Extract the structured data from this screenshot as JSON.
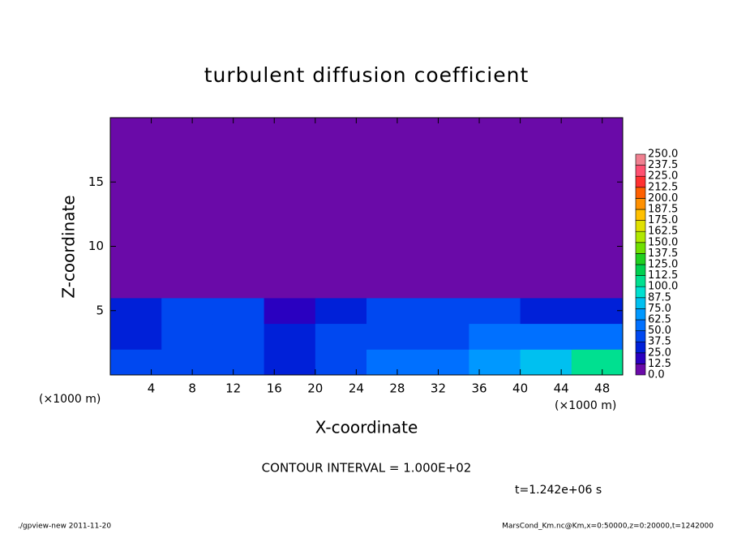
{
  "chart_data": {
    "type": "heatmap",
    "title": "turbulent diffusion coefficient",
    "x_label": "X-coordinate",
    "y_label": "Z-coordinate",
    "x_unit": "(×1000 m)",
    "y_unit": "(×1000 m)",
    "contour_note": "CONTOUR INTERVAL = 1.000E+02",
    "time_note": "t=1.242e+06 s",
    "footer_left": "./gpview-new  2011-11-20",
    "footer_right": "MarsCond_Km.nc@Km,x=0:50000,z=0:20000,t=1242000",
    "xlim": [
      0,
      50
    ],
    "ylim": [
      0,
      20
    ],
    "xticks": [
      4,
      8,
      12,
      16,
      20,
      24,
      28,
      32,
      36,
      40,
      44,
      48
    ],
    "yticks": [
      5,
      10,
      15
    ],
    "xbins": [
      0,
      5,
      10,
      15,
      20,
      25,
      30,
      35,
      40,
      45,
      50
    ],
    "ybins": [
      0,
      2,
      4,
      6,
      20
    ],
    "z": [
      [
        40,
        45,
        40,
        35,
        45,
        50,
        60,
        70,
        80,
        100
      ],
      [
        35,
        45,
        40,
        30,
        45,
        45,
        40,
        55,
        50,
        60
      ],
      [
        25,
        40,
        40,
        20,
        35,
        40,
        45,
        40,
        35,
        30
      ],
      [
        5,
        5,
        5,
        5,
        5,
        5,
        5,
        5,
        5,
        5
      ]
    ],
    "levels": [
      {
        "value": 0,
        "label": "0.0"
      },
      {
        "value": 12.5,
        "label": "12.5"
      },
      {
        "value": 25,
        "label": "25.0"
      },
      {
        "value": 37.5,
        "label": "37.5"
      },
      {
        "value": 50,
        "label": "50.0"
      },
      {
        "value": 62.5,
        "label": "62.5"
      },
      {
        "value": 75,
        "label": "75.0"
      },
      {
        "value": 87.5,
        "label": "87.5"
      },
      {
        "value": 100,
        "label": "100.0"
      },
      {
        "value": 112.5,
        "label": "112.5"
      },
      {
        "value": 125,
        "label": "125.0"
      },
      {
        "value": 137.5,
        "label": "137.5"
      },
      {
        "value": 150,
        "label": "150.0"
      },
      {
        "value": 162.5,
        "label": "162.5"
      },
      {
        "value": 175,
        "label": "175.0"
      },
      {
        "value": 187.5,
        "label": "187.5"
      },
      {
        "value": 200,
        "label": "200.0"
      },
      {
        "value": 212.5,
        "label": "212.5"
      },
      {
        "value": 225,
        "label": "225.0"
      },
      {
        "value": 237.5,
        "label": "237.5"
      },
      {
        "value": 250,
        "label": "250.0"
      }
    ],
    "colors": [
      "#6a0aa8",
      "#2a00c0",
      "#0020d8",
      "#0048f0",
      "#0070ff",
      "#0098ff",
      "#00c0f0",
      "#00e0d0",
      "#00e090",
      "#00d050",
      "#20d020",
      "#70e000",
      "#b0e800",
      "#e0e000",
      "#ffc000",
      "#ff9000",
      "#ff6000",
      "#ff3030",
      "#ff5070",
      "#f08090"
    ]
  }
}
